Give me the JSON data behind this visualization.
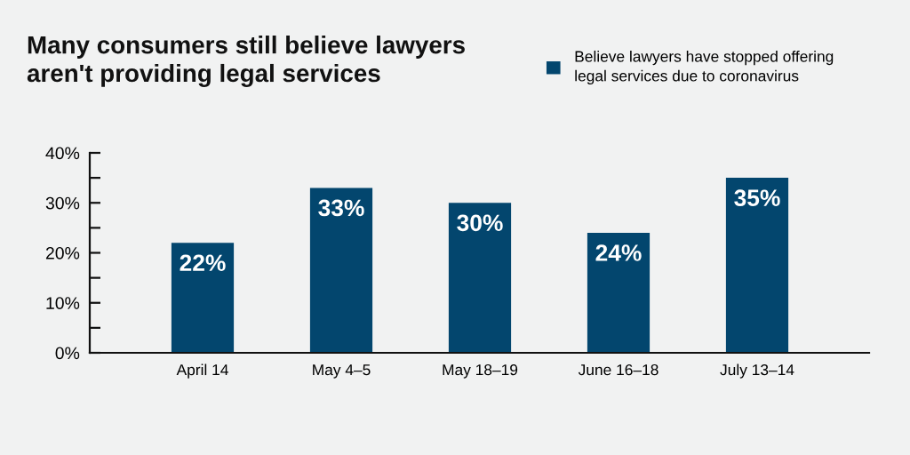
{
  "chart_data": {
    "type": "bar",
    "title": "Many consumers still believe lawyers aren't providing legal services",
    "categories": [
      "April 14",
      "May 4–5",
      "May 18–19",
      "June 16–18",
      "July 13–14"
    ],
    "series": [
      {
        "name": "Believe lawyers have stopped offering legal services due to coronavirus",
        "color": "#03466e",
        "values": [
          22,
          33,
          30,
          24,
          35
        ],
        "value_labels": [
          "22%",
          "33%",
          "30%",
          "24%",
          "35%"
        ]
      }
    ],
    "ylim": [
      0,
      40
    ],
    "yticks": [
      {
        "value": 0,
        "label": "0%"
      },
      {
        "value": 5,
        "label": null
      },
      {
        "value": 10,
        "label": "10%"
      },
      {
        "value": 15,
        "label": null
      },
      {
        "value": 20,
        "label": "20%"
      },
      {
        "value": 25,
        "label": null
      },
      {
        "value": 30,
        "label": "30%"
      },
      {
        "value": 35,
        "label": null
      },
      {
        "value": 40,
        "label": "40%"
      }
    ],
    "legend": "top right",
    "grid": false
  }
}
